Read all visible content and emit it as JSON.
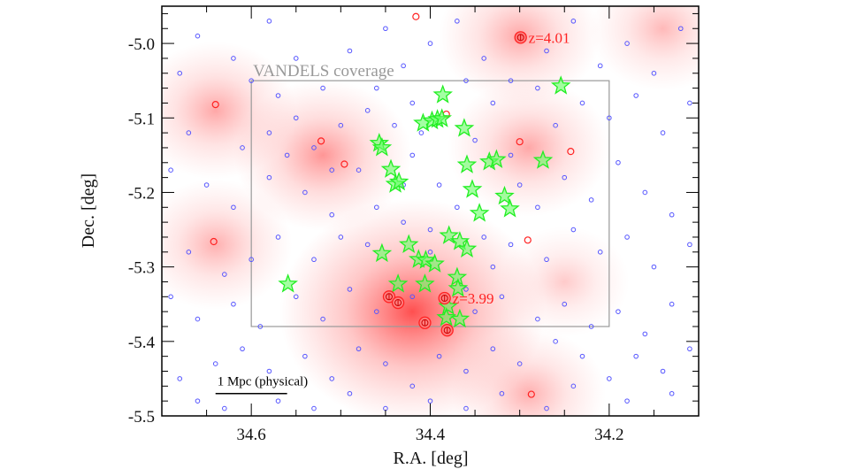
{
  "chart_data": {
    "type": "scatter",
    "title": "",
    "xlabel": "R.A. [deg]",
    "ylabel": "Dec. [deg]",
    "xlim": [
      34.7,
      34.1
    ],
    "ylim": [
      -5.5,
      -4.95
    ],
    "x_reversed": true,
    "xticks": [
      34.6,
      34.4,
      34.2
    ],
    "xtick_labels": [
      "34.6",
      "34.4",
      "34.2"
    ],
    "yticks": [
      -5.0,
      -5.1,
      -5.2,
      -5.3,
      -5.4,
      -5.5
    ],
    "ytick_labels": [
      "-5.0",
      "-5.1",
      "-5.2",
      "-5.3",
      "-5.4",
      "-5.5"
    ],
    "grid": false,
    "colors": {
      "galaxies": "#5555ff",
      "stars": "#22ee22",
      "redshift": "#ff2222",
      "density": "#ff4444",
      "coverage": "#999999"
    },
    "coverage_box": {
      "label": "VANDELS coverage",
      "ra": [
        34.6,
        34.2
      ],
      "dec": [
        -5.05,
        -5.38
      ]
    },
    "scale_bar": {
      "label": "1 Mpc (physical)",
      "ra": [
        34.64,
        34.56
      ],
      "dec": -5.47
    },
    "density_peaks": [
      {
        "ra": 34.42,
        "dec": -5.36,
        "level": 1.0
      },
      {
        "ra": 34.52,
        "dec": -5.15,
        "level": 0.45
      },
      {
        "ra": 34.64,
        "dec": -5.09,
        "level": 0.35
      },
      {
        "ra": 34.29,
        "dec": -5.14,
        "level": 0.35
      },
      {
        "ra": 34.64,
        "dec": -5.27,
        "level": 0.3
      },
      {
        "ra": 34.29,
        "dec": -5.47,
        "level": 0.3
      },
      {
        "ra": 34.3,
        "dec": -4.99,
        "level": 0.35
      },
      {
        "ra": 34.14,
        "dec": -4.98,
        "level": 0.25
      },
      {
        "ra": 34.25,
        "dec": -5.32,
        "level": 0.15
      }
    ],
    "series": [
      {
        "marker": "star",
        "points": [
          [
            34.386,
            -5.069
          ],
          [
            34.254,
            -5.057
          ],
          [
            34.408,
            -5.107
          ],
          [
            34.398,
            -5.104
          ],
          [
            34.392,
            -5.102
          ],
          [
            34.387,
            -5.101
          ],
          [
            34.362,
            -5.114
          ],
          [
            34.457,
            -5.134
          ],
          [
            34.454,
            -5.14
          ],
          [
            34.444,
            -5.169
          ],
          [
            34.439,
            -5.189
          ],
          [
            34.435,
            -5.186
          ],
          [
            34.359,
            -5.163
          ],
          [
            34.353,
            -5.196
          ],
          [
            34.334,
            -5.159
          ],
          [
            34.326,
            -5.156
          ],
          [
            34.317,
            -5.205
          ],
          [
            34.311,
            -5.222
          ],
          [
            34.345,
            -5.228
          ],
          [
            34.274,
            -5.157
          ],
          [
            34.379,
            -5.258
          ],
          [
            34.367,
            -5.266
          ],
          [
            34.359,
            -5.276
          ],
          [
            34.454,
            -5.282
          ],
          [
            34.424,
            -5.27
          ],
          [
            34.413,
            -5.29
          ],
          [
            34.405,
            -5.291
          ],
          [
            34.395,
            -5.296
          ],
          [
            34.37,
            -5.314
          ],
          [
            34.369,
            -5.329
          ],
          [
            34.436,
            -5.323
          ],
          [
            34.406,
            -5.323
          ],
          [
            34.38,
            -5.353
          ],
          [
            34.367,
            -5.37
          ],
          [
            34.382,
            -5.368
          ],
          [
            34.559,
            -5.323
          ]
        ]
      },
      {
        "marker": "spec-z-confirmed",
        "points": [
          [
            34.446,
            -5.34
          ],
          [
            34.436,
            -5.348
          ],
          [
            34.384,
            -5.342
          ],
          [
            34.406,
            -5.375
          ],
          [
            34.381,
            -5.385
          ],
          [
            34.299,
            -4.992
          ]
        ]
      },
      {
        "marker": "red-circle",
        "points": [
          [
            34.416,
            -4.964
          ],
          [
            34.64,
            -5.082
          ],
          [
            34.522,
            -5.131
          ],
          [
            34.496,
            -5.162
          ],
          [
            34.382,
            -5.095
          ],
          [
            34.3,
            -5.132
          ],
          [
            34.243,
            -5.145
          ],
          [
            34.642,
            -5.266
          ],
          [
            34.291,
            -5.264
          ],
          [
            34.287,
            -5.471
          ]
        ]
      },
      {
        "marker": "blue-circle",
        "points": [
          [
            34.68,
            -5.04
          ],
          [
            34.66,
            -4.99
          ],
          [
            34.62,
            -5.02
          ],
          [
            34.58,
            -4.97
          ],
          [
            34.55,
            -5.02
          ],
          [
            34.52,
            -5.06
          ],
          [
            34.49,
            -5.01
          ],
          [
            34.45,
            -4.98
          ],
          [
            34.43,
            -5.03
          ],
          [
            34.4,
            -5.0
          ],
          [
            34.37,
            -4.97
          ],
          [
            34.34,
            -5.02
          ],
          [
            34.31,
            -5.05
          ],
          [
            34.27,
            -5.01
          ],
          [
            34.24,
            -4.97
          ],
          [
            34.21,
            -5.03
          ],
          [
            34.18,
            -5.0
          ],
          [
            34.15,
            -5.04
          ],
          [
            34.12,
            -4.98
          ],
          [
            34.11,
            -5.08
          ],
          [
            34.14,
            -5.12
          ],
          [
            34.17,
            -5.07
          ],
          [
            34.2,
            -5.1
          ],
          [
            34.23,
            -5.08
          ],
          [
            34.26,
            -5.11
          ],
          [
            34.33,
            -5.08
          ],
          [
            34.36,
            -5.05
          ],
          [
            34.42,
            -5.08
          ],
          [
            34.47,
            -5.09
          ],
          [
            34.5,
            -5.11
          ],
          [
            34.55,
            -5.1
          ],
          [
            34.58,
            -5.12
          ],
          [
            34.61,
            -5.14
          ],
          [
            34.67,
            -5.12
          ],
          [
            34.69,
            -5.17
          ],
          [
            34.65,
            -5.19
          ],
          [
            34.62,
            -5.22
          ],
          [
            34.58,
            -5.18
          ],
          [
            34.54,
            -5.2
          ],
          [
            34.51,
            -5.23
          ],
          [
            34.48,
            -5.17
          ],
          [
            34.46,
            -5.22
          ],
          [
            34.42,
            -5.15
          ],
          [
            34.39,
            -5.19
          ],
          [
            34.37,
            -5.22
          ],
          [
            34.3,
            -5.19
          ],
          [
            34.28,
            -5.22
          ],
          [
            34.25,
            -5.18
          ],
          [
            34.22,
            -5.21
          ],
          [
            34.19,
            -5.16
          ],
          [
            34.16,
            -5.2
          ],
          [
            34.13,
            -5.23
          ],
          [
            34.11,
            -5.27
          ],
          [
            34.15,
            -5.3
          ],
          [
            34.18,
            -5.26
          ],
          [
            34.21,
            -5.28
          ],
          [
            34.24,
            -5.25
          ],
          [
            34.27,
            -5.29
          ],
          [
            34.31,
            -5.27
          ],
          [
            34.33,
            -5.3
          ],
          [
            34.36,
            -5.33
          ],
          [
            34.4,
            -5.25
          ],
          [
            34.43,
            -5.24
          ],
          [
            34.47,
            -5.27
          ],
          [
            34.5,
            -5.26
          ],
          [
            34.53,
            -5.29
          ],
          [
            34.57,
            -5.26
          ],
          [
            34.6,
            -5.29
          ],
          [
            34.63,
            -5.31
          ],
          [
            34.67,
            -5.28
          ],
          [
            34.69,
            -5.34
          ],
          [
            34.66,
            -5.37
          ],
          [
            34.62,
            -5.35
          ],
          [
            34.59,
            -5.38
          ],
          [
            34.55,
            -5.34
          ],
          [
            34.52,
            -5.37
          ],
          [
            34.49,
            -5.33
          ],
          [
            34.46,
            -5.36
          ],
          [
            34.42,
            -5.34
          ],
          [
            34.35,
            -5.36
          ],
          [
            34.32,
            -5.34
          ],
          [
            34.28,
            -5.37
          ],
          [
            34.25,
            -5.35
          ],
          [
            34.22,
            -5.38
          ],
          [
            34.19,
            -5.36
          ],
          [
            34.16,
            -5.39
          ],
          [
            34.13,
            -5.35
          ],
          [
            34.11,
            -5.41
          ],
          [
            34.14,
            -5.44
          ],
          [
            34.17,
            -5.42
          ],
          [
            34.2,
            -5.45
          ],
          [
            34.23,
            -5.42
          ],
          [
            34.26,
            -5.4
          ],
          [
            34.3,
            -5.43
          ],
          [
            34.33,
            -5.41
          ],
          [
            34.36,
            -5.44
          ],
          [
            34.39,
            -5.42
          ],
          [
            34.42,
            -5.46
          ],
          [
            34.45,
            -5.43
          ],
          [
            34.48,
            -5.41
          ],
          [
            34.51,
            -5.45
          ],
          [
            34.54,
            -5.42
          ],
          [
            34.58,
            -5.44
          ],
          [
            34.61,
            -5.41
          ],
          [
            34.64,
            -5.43
          ],
          [
            34.68,
            -5.45
          ],
          [
            34.66,
            -5.48
          ],
          [
            34.63,
            -5.49
          ],
          [
            34.57,
            -5.48
          ],
          [
            34.53,
            -5.49
          ],
          [
            34.49,
            -5.47
          ],
          [
            34.45,
            -5.49
          ],
          [
            34.4,
            -5.48
          ],
          [
            34.36,
            -5.49
          ],
          [
            34.32,
            -5.47
          ],
          [
            34.27,
            -5.49
          ],
          [
            34.24,
            -5.46
          ],
          [
            34.18,
            -5.48
          ],
          [
            34.13,
            -5.47
          ],
          [
            34.44,
            -5.11
          ],
          [
            34.46,
            -5.06
          ],
          [
            34.41,
            -5.12
          ],
          [
            34.35,
            -5.13
          ],
          [
            34.31,
            -5.15
          ],
          [
            34.28,
            -5.06
          ],
          [
            34.57,
            -5.07
          ],
          [
            34.6,
            -5.05
          ],
          [
            34.56,
            -5.15
          ],
          [
            34.53,
            -5.14
          ],
          [
            34.51,
            -5.17
          ],
          [
            34.43,
            -5.19
          ],
          [
            34.4,
            -5.28
          ],
          [
            34.34,
            -5.26
          ]
        ]
      }
    ],
    "annotations": [
      {
        "text": "z=4.01",
        "ra": 34.299,
        "dec": -4.992
      },
      {
        "text": "z=3.99",
        "ra": 34.384,
        "dec": -5.342
      }
    ]
  }
}
